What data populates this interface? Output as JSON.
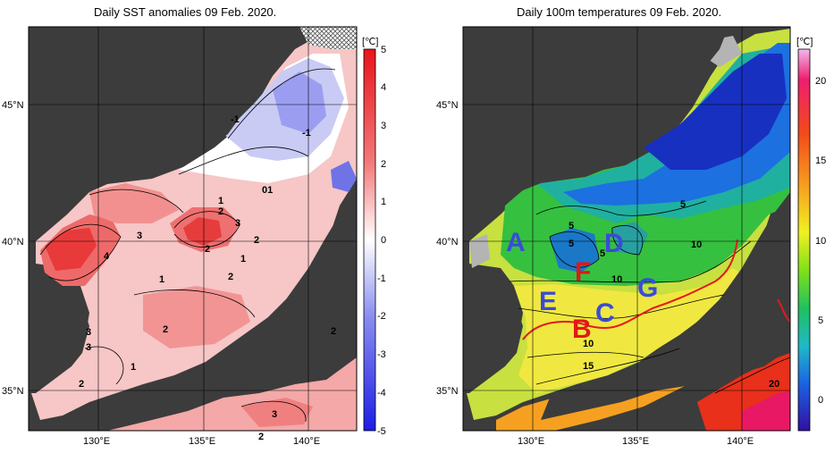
{
  "left_panel": {
    "title": "Daily SST anomalies 09 Feb. 2020.",
    "colorbar_unit": "[℃]",
    "colorbar_ticks": [
      "5",
      "4",
      "3",
      "2",
      "1",
      "0",
      "-1",
      "-2",
      "-3",
      "-4",
      "-5"
    ],
    "contour_labels": [
      "-1",
      "-1",
      "1",
      "01",
      "2",
      "3",
      "2",
      "3",
      "4",
      "2",
      "1",
      "2",
      "1",
      "2",
      "3",
      "3",
      "2",
      "1",
      "2",
      "3",
      "2"
    ]
  },
  "right_panel": {
    "title": "Daily 100m temperatures 09 Feb. 2020.",
    "colorbar_unit": "[℃]",
    "colorbar_ticks": [
      "20",
      "15",
      "10",
      "5",
      "0"
    ],
    "contour_labels": [
      "5",
      "5",
      "5",
      "5",
      "10",
      "10",
      "10",
      "15",
      "20",
      "5"
    ],
    "region_markers": [
      {
        "text": "A",
        "color": "#3a4bd8"
      },
      {
        "text": "D",
        "color": "#3a4bd8"
      },
      {
        "text": "F",
        "color": "#e01818"
      },
      {
        "text": "G",
        "color": "#3a4bd8"
      },
      {
        "text": "E",
        "color": "#3a4bd8"
      },
      {
        "text": "C",
        "color": "#3a4bd8"
      },
      {
        "text": "B",
        "color": "#e01818"
      }
    ]
  },
  "axes": {
    "lat_labels": [
      "45°N",
      "40°N",
      "35°N"
    ],
    "lon_labels": [
      "130°E",
      "135°E",
      "140°E"
    ]
  },
  "colors": {
    "land": "#3c3c3c",
    "nodata": "#b4b4b4",
    "kuroshio_line": "#e31a1c"
  }
}
